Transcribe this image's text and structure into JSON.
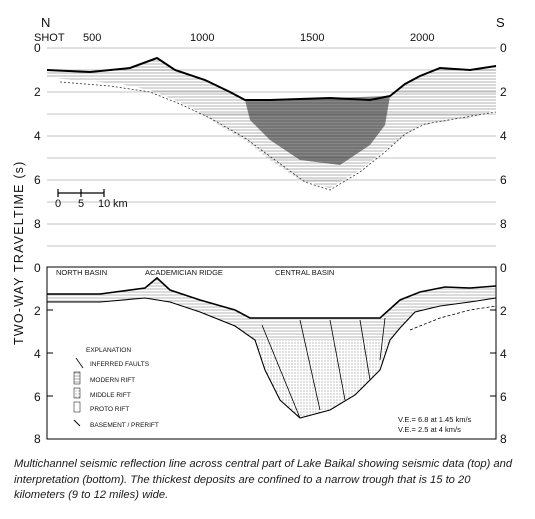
{
  "top_panel": {
    "north_label": "N",
    "south_label": "S",
    "shot_label": "SHOT",
    "shot_ticks": [
      "500",
      "1000",
      "1500",
      "2000"
    ],
    "depth_ticks": [
      "0",
      "2",
      "4",
      "6",
      "8"
    ],
    "scale_bar": {
      "ticks": [
        "0",
        "5",
        "10"
      ],
      "unit": "km"
    }
  },
  "y_axis_title": "TWO-WAY TRAVELTIME (s)",
  "bottom_panel": {
    "depth_ticks": [
      "0",
      "2",
      "4",
      "6",
      "8"
    ],
    "basin_labels": [
      "NORTH BASIN",
      "ACADEMICIAN RIDGE",
      "CENTRAL BASIN"
    ],
    "explanation": {
      "title": "EXPLANATION",
      "items": [
        "INFERRED FAULTS",
        "MODERN RIFT",
        "MIDDLE RIFT",
        "PROTO RIFT",
        "BASEMENT / PRERIFT"
      ]
    },
    "velocity_notes": [
      "V.E.= 6.8 at 1.45 km/s",
      "V.E.= 2.5 at 4 km/s"
    ]
  },
  "caption": "Multichannel seismic reflection line across central part of Lake Baikal showing seismic data (top) and interpretation (bottom).  The thickest deposits are confined to a narrow trough that is 15 to 20 kilometers (9 to 12 miles) wide."
}
